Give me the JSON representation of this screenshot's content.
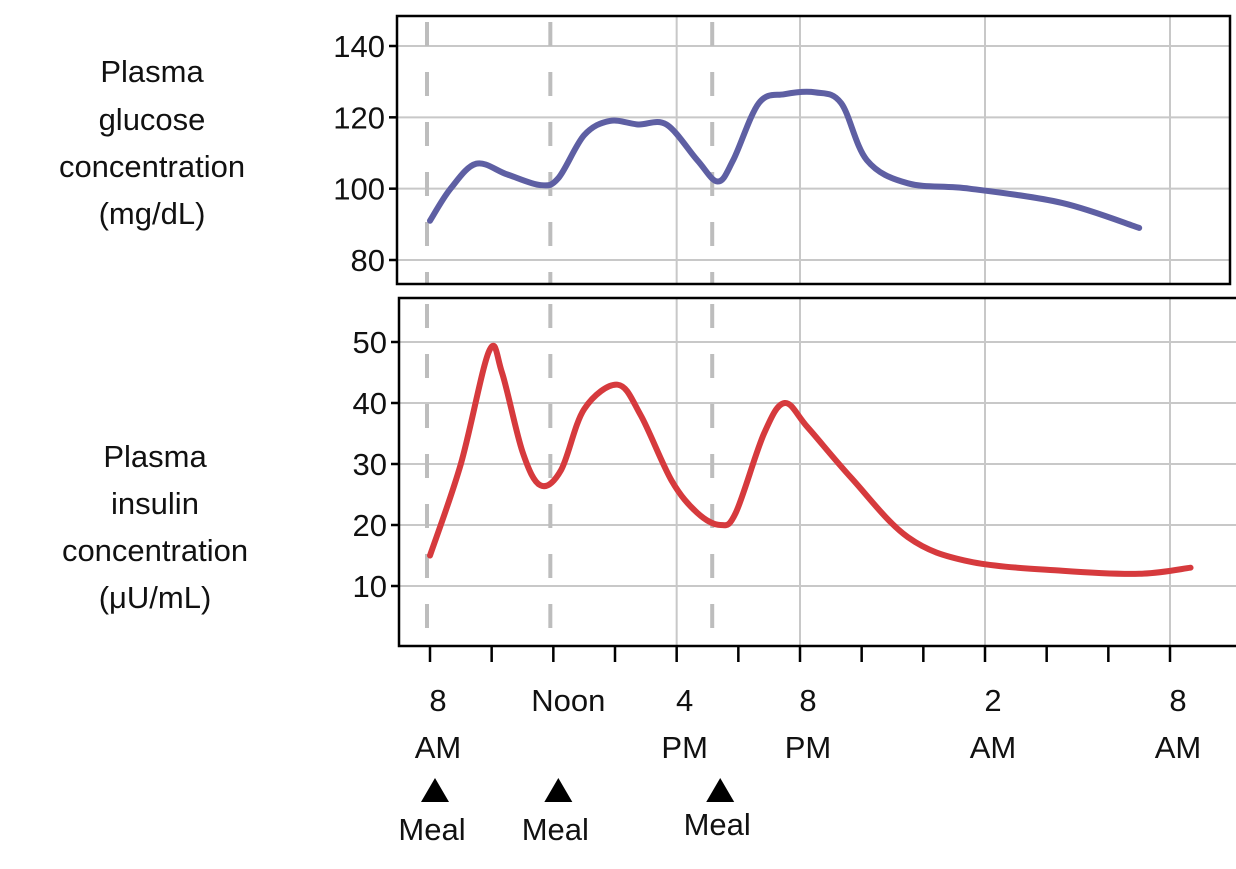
{
  "chart_data": [
    {
      "type": "line",
      "ylabel": [
        "Plasma",
        "glucose",
        "concentration",
        "(mg/dL)"
      ],
      "ylim": [
        80,
        140
      ],
      "yticks": [
        80,
        100,
        120,
        140
      ],
      "grid": true,
      "color": "#5e5fa3",
      "series": [
        {
          "x": [
            "08:00",
            "08:40",
            "09:30",
            "10:30",
            "11:35",
            "12:10",
            "13:00",
            "13:50",
            "14:45",
            "15:40",
            "16:40",
            "17:20",
            "17:50",
            "18:40",
            "19:30",
            "20:30",
            "21:20",
            "22:10",
            "23:30",
            "01:30+1",
            "04:30+1",
            "07:00+1"
          ],
          "y": [
            91,
            100,
            107,
            104,
            101,
            103,
            115,
            119,
            118,
            118,
            108,
            102,
            108,
            124,
            126.5,
            127,
            124,
            108,
            101.5,
            100,
            96,
            89
          ]
        }
      ]
    },
    {
      "type": "line",
      "ylabel": [
        "Plasma",
        "insulin",
        "concentration",
        "(μU/mL)"
      ],
      "ylim": [
        0,
        55
      ],
      "yticks": [
        10,
        20,
        30,
        40,
        50
      ],
      "grid": true,
      "color": "#d63a3d",
      "series": [
        {
          "x": [
            "08:00",
            "09:00",
            "09:55",
            "10:20",
            "11:00",
            "11:35",
            "12:15",
            "13:00",
            "14:05",
            "14:50",
            "15:50",
            "16:40",
            "17:25",
            "17:55",
            "18:50",
            "19:30",
            "20:15",
            "21:40",
            "23:30",
            "01:30+1",
            "04:30+1",
            "07:00+1",
            "08:40+1"
          ],
          "y": [
            15,
            30,
            48.5,
            45,
            32,
            26.5,
            29,
            39,
            43,
            38,
            27.3,
            22,
            20,
            22,
            35,
            40,
            36,
            27.7,
            18,
            14,
            12.5,
            12,
            13
          ]
        }
      ]
    }
  ],
  "x_axis": {
    "ticks": [
      "08:00",
      "10:00",
      "12:00",
      "14:00",
      "16:00",
      "18:00",
      "20:00",
      "22:00",
      "00:00+1",
      "02:00+1",
      "04:00+1",
      "06:00+1",
      "08:00+1"
    ],
    "labels": [
      {
        "at": "08:00",
        "lines": [
          "8",
          "AM"
        ]
      },
      {
        "at": "12:00",
        "lines": [
          "Noon"
        ]
      },
      {
        "at": "16:00",
        "lines": [
          "4",
          "PM"
        ]
      },
      {
        "at": "20:00",
        "lines": [
          "8",
          "PM"
        ]
      },
      {
        "at": "02:00+1",
        "lines": [
          "2",
          "AM"
        ]
      },
      {
        "at": "08:00+1",
        "lines": [
          "8",
          "AM"
        ]
      }
    ]
  },
  "meals": [
    {
      "at": "08:00",
      "label": "Meal"
    },
    {
      "at": "12:00",
      "label": "Meal"
    },
    {
      "at": "17:15",
      "label": "Meal"
    }
  ],
  "meal_marker_icon": "triangle-up-icon"
}
